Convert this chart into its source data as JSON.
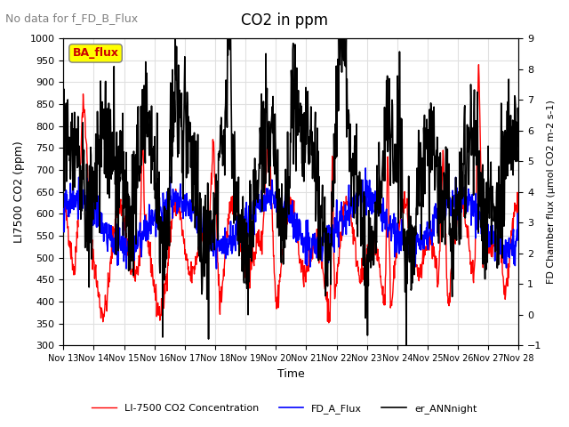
{
  "title": "CO2 in ppm",
  "subtitle": "No data for f_FD_B_Flux",
  "xlabel": "Time",
  "ylabel_left": "LI7500 CO2 (ppm)",
  "ylabel_right": "FD Chamber flux (μmol CO2 m-2 s-1)",
  "ylim_left": [
    300,
    1000
  ],
  "ylim_right": [
    -1.0,
    9.0
  ],
  "yticks_left": [
    300,
    350,
    400,
    450,
    500,
    550,
    600,
    650,
    700,
    750,
    800,
    850,
    900,
    950,
    1000
  ],
  "yticks_right": [
    -1.0,
    0.0,
    1.0,
    2.0,
    3.0,
    4.0,
    5.0,
    6.0,
    7.0,
    8.0,
    9.0
  ],
  "xticklabels": [
    "Nov 13",
    "Nov 14",
    "Nov 15",
    "Nov 16",
    "Nov 17",
    "Nov 18",
    "Nov 19",
    "Nov 20",
    "Nov 21",
    "Nov 22",
    "Nov 23",
    "Nov 24",
    "Nov 25",
    "Nov 26",
    "Nov 27",
    "Nov 28"
  ],
  "line_colors": {
    "co2": "#ff0000",
    "fd_a": "#0000ff",
    "er_ann": "#000000"
  },
  "line_widths": {
    "co2": 1.0,
    "fd_a": 1.2,
    "er_ann": 1.2
  },
  "legend_labels": [
    "LI-7500 CO2 Concentration",
    "FD_A_Flux",
    "er_ANNnight"
  ],
  "annotation_box": "BA_flux",
  "annotation_box_color": "#ffff00",
  "annotation_box_text_color": "#cc0000",
  "background_color": "#ffffff",
  "grid_color": "#e0e0e0",
  "n_points": 1152
}
